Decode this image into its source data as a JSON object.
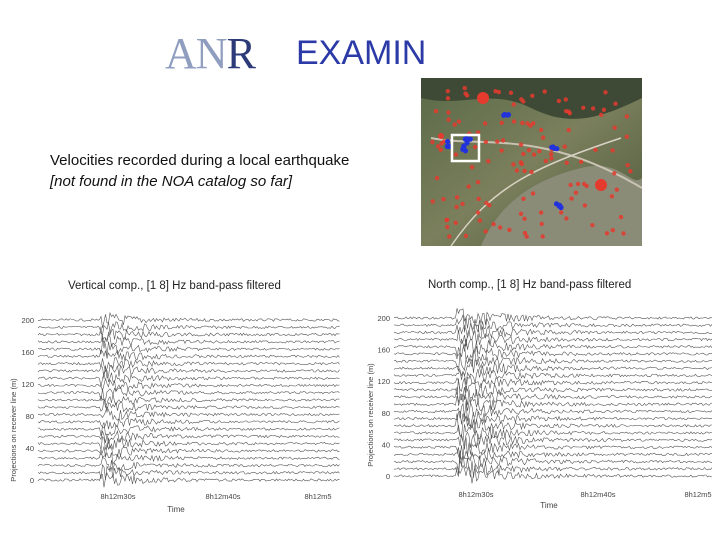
{
  "header": {
    "logo_text_an": "AN",
    "logo_text_r": "R",
    "title": "EXAMIN"
  },
  "captions": {
    "line1": "Velocities recorded during a local earthquake",
    "line2": "[not found in the NOA catalog so far]"
  },
  "map": {
    "icon": "satellite-map-icon",
    "marker_colors": {
      "sensor": "#e53a2e",
      "highlight": "#2233dd",
      "box": "#ffffff"
    }
  },
  "panels": [
    {
      "label": "Vertical comp., [1 8] Hz band-pass filtered",
      "ylabel": "Projections on receiver line (m)",
      "xlabel": "Time",
      "yticks": [
        "200",
        "160",
        "120",
        "80",
        "40",
        "0"
      ],
      "xticks": [
        "8h12m30s",
        "8h12m40s",
        "8h12m5"
      ]
    },
    {
      "label": "North comp., [1 8] Hz band-pass filtered",
      "ylabel": "Projections on receiver line (m)",
      "xlabel": "Time",
      "yticks": [
        "200",
        "160",
        "120",
        "80",
        "40",
        "0"
      ],
      "xticks": [
        "8h12m30s",
        "8h12m40s",
        "8h12m5"
      ]
    }
  ]
}
